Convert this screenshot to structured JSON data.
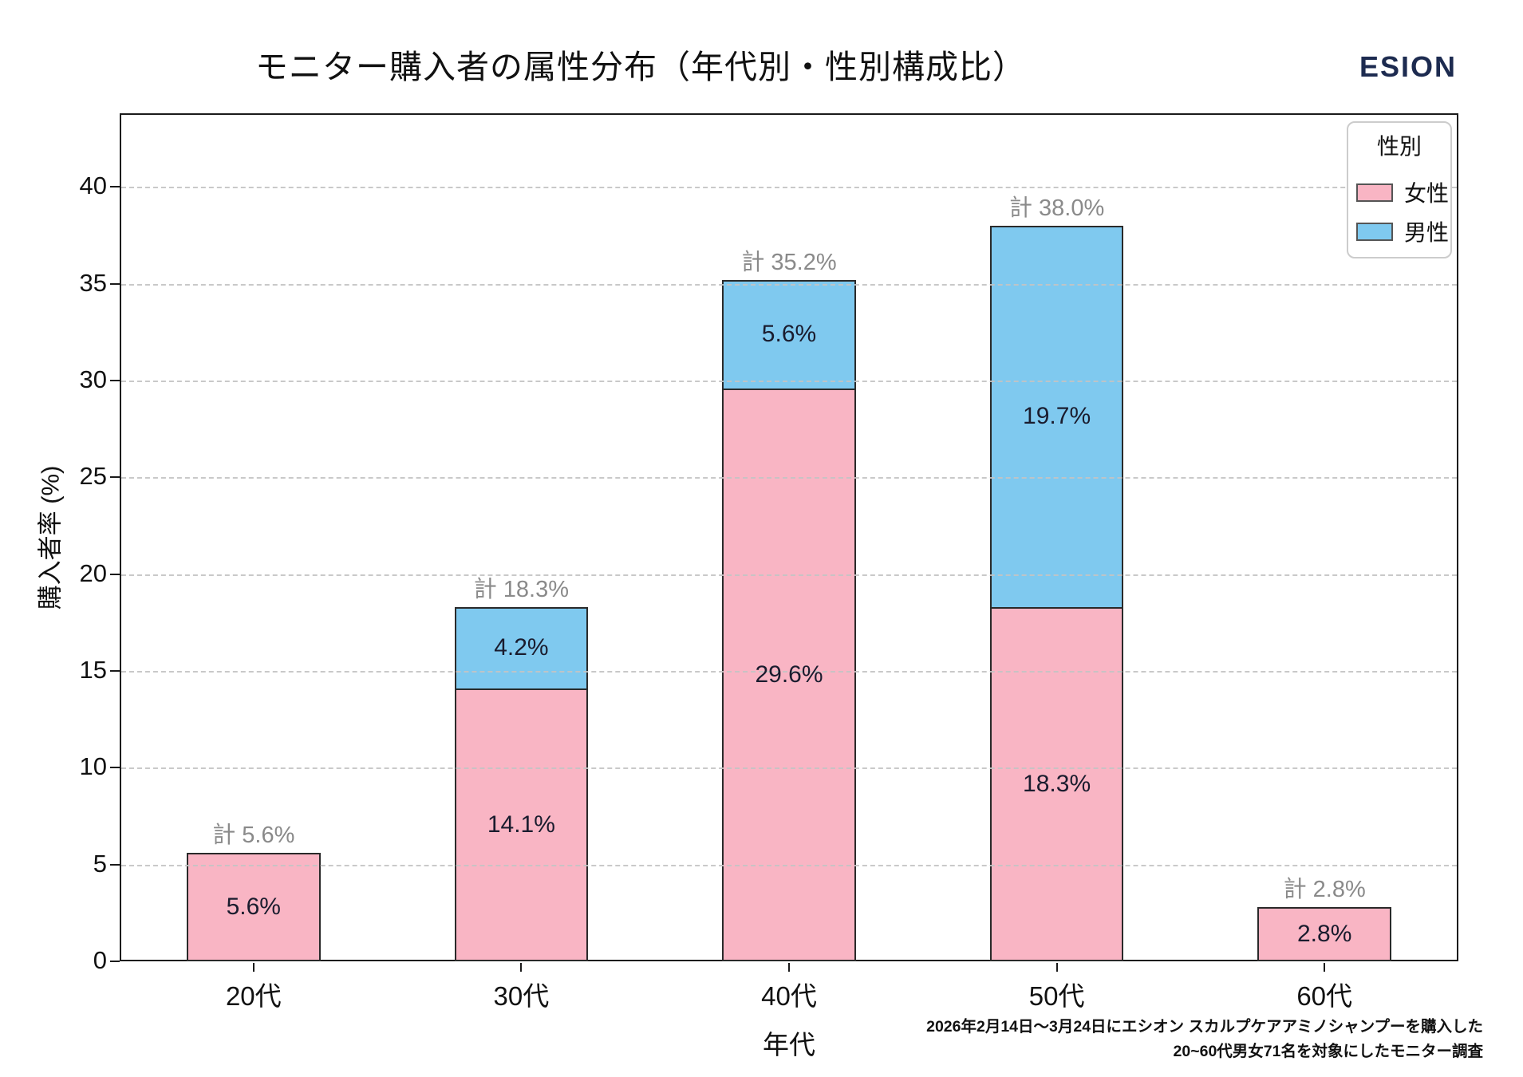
{
  "header": {
    "title": "モニター購入者の属性分布（年代別・性別構成比）",
    "brand": "ESION",
    "brand_color": "#1d2b50"
  },
  "chart_data": {
    "type": "bar",
    "stacked": true,
    "title": "モニター購入者の属性分布（年代別・性別構成比）",
    "xlabel": "年代",
    "ylabel": "購入者率 (%)",
    "categories": [
      "20代",
      "30代",
      "40代",
      "50代",
      "60代"
    ],
    "series": [
      {
        "name": "女性",
        "color": "#f9b5c4",
        "values": [
          5.6,
          14.1,
          29.6,
          18.3,
          2.8
        ]
      },
      {
        "name": "男性",
        "color": "#7fc9ef",
        "values": [
          0,
          4.2,
          5.6,
          19.7,
          0
        ]
      }
    ],
    "totals": [
      5.6,
      18.3,
      35.2,
      38.0,
      2.8
    ],
    "total_label_prefix": "計",
    "value_suffix": "%",
    "ylim": [
      0,
      43.8
    ],
    "yticks": [
      0,
      5,
      10,
      15,
      20,
      25,
      30,
      35,
      40
    ],
    "grid": {
      "axis": "y",
      "style": "dashed",
      "color": "#c4c4c4",
      "on_top": true
    },
    "legend": {
      "title": "性別",
      "position": "upper-right",
      "items": [
        "女性",
        "男性"
      ]
    },
    "bar_edge_color": "#2a2a2a",
    "total_label_color": "#8a8a8a",
    "value_label_color": "#1a1c2e"
  },
  "footer": {
    "line1": "2026年2月14日〜3月24日にエシオン スカルプケアアミノシャンプーを購入した",
    "line2": "20~60代男女71名を対象にしたモニター調査"
  }
}
